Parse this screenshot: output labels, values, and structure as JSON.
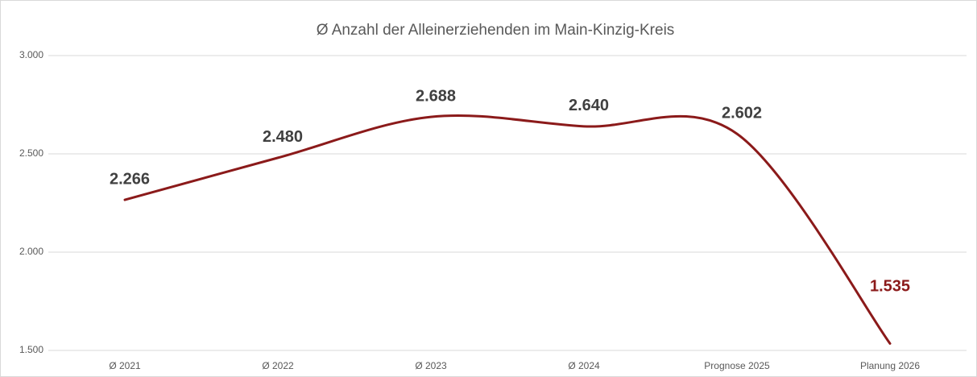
{
  "chart_data": {
    "type": "line",
    "title": "Ø Anzahl der Alleinerziehenden  im Main-Kinzig-Kreis",
    "categories": [
      "Ø 2021",
      "Ø 2022",
      "Ø 2023",
      "Ø 2024",
      "Prognose 2025",
      "Planung 2026"
    ],
    "values": [
      2266,
      2480,
      2688,
      2640,
      2602,
      1535
    ],
    "value_labels": [
      "2.266",
      "2.480",
      "2.688",
      "2.640",
      "2.602",
      "1.535"
    ],
    "value_label_colors": [
      "#404040",
      "#404040",
      "#404040",
      "#404040",
      "#404040",
      "#8b1a1a"
    ],
    "color": "#8b1a1a",
    "smooth": true,
    "ylim": [
      1500,
      3000
    ],
    "yticks": [
      {
        "value": 1500,
        "label": "1.500"
      },
      {
        "value": 2000,
        "label": "2.000"
      },
      {
        "value": 2500,
        "label": "2.500"
      },
      {
        "value": 3000,
        "label": "3.000"
      }
    ],
    "grid": true
  }
}
